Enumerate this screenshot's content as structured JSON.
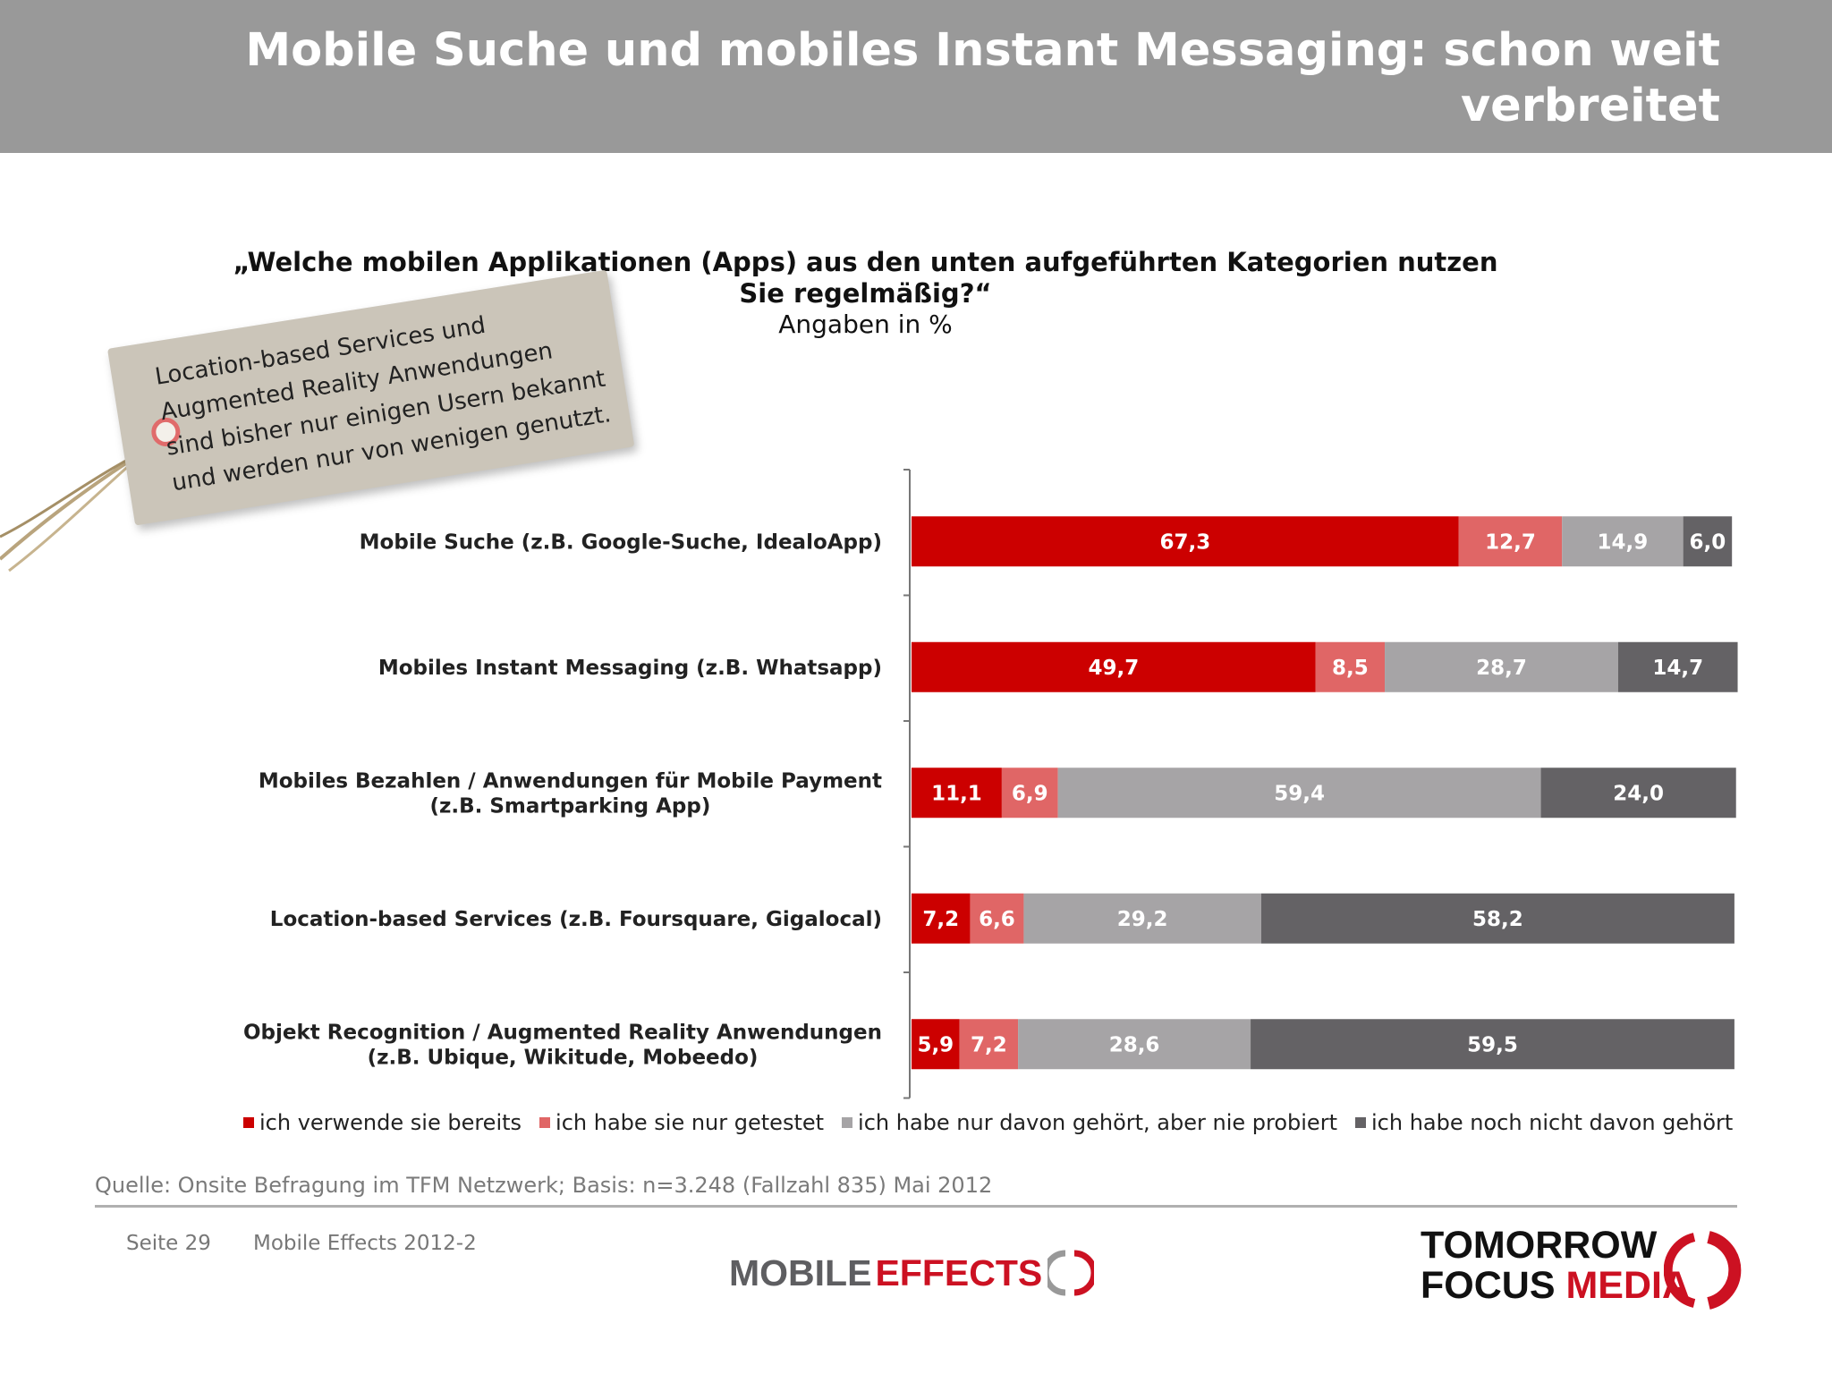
{
  "header": {
    "title_line1": "Mobile Suche und mobiles Instant Messaging: schon weit",
    "title_line2": "verbreitet"
  },
  "question": {
    "line1": "„Welche mobilen Applikationen (Apps) aus den unten aufgeführten Kategorien nutzen",
    "line2": "Sie regelmäßig?“",
    "unit": "Angaben in %"
  },
  "tag": {
    "lines": [
      "Location-based Services und",
      "Augmented Reality Anwendungen",
      "sind bisher nur einigen Usern bekannt",
      "und werden nur von wenigen genutzt."
    ]
  },
  "colors": {
    "header_bg": "#999999",
    "series": [
      "#cc0000",
      "#e06666",
      "#a6a4a6",
      "#646265"
    ]
  },
  "chart_data": {
    "type": "bar",
    "orientation": "horizontal",
    "stacked": true,
    "categories": [
      [
        "Mobile Suche (z.B. Google-Suche, IdealoApp)"
      ],
      [
        "Mobiles Instant Messaging (z.B. Whatsapp)"
      ],
      [
        "Mobiles Bezahlen / Anwendungen für Mobile Payment",
        "(z.B. Smartparking App)"
      ],
      [
        "Location-based Services (z.B. Foursquare, Gigalocal)"
      ],
      [
        "Objekt Recognition / Augmented Reality Anwendungen",
        "(z.B. Ubique, Wikitude, Mobeedo)"
      ]
    ],
    "series": [
      {
        "name": "ich verwende sie bereits",
        "values": [
          67.3,
          49.7,
          11.1,
          7.2,
          5.9
        ],
        "labels": [
          "67,3",
          "49,7",
          "11,1",
          "7,2",
          "5,9"
        ]
      },
      {
        "name": "ich habe sie nur getestet",
        "values": [
          12.7,
          8.5,
          6.9,
          6.6,
          7.2
        ],
        "labels": [
          "12,7",
          "8,5",
          "6,9",
          "6,6",
          "7,2"
        ]
      },
      {
        "name": "ich habe nur davon gehört, aber nie probiert",
        "values": [
          14.9,
          28.7,
          59.4,
          29.2,
          28.6
        ],
        "labels": [
          "14,9",
          "28,7",
          "59,4",
          "29,2",
          "28,6"
        ]
      },
      {
        "name": "ich habe noch nicht davon gehört",
        "values": [
          6.0,
          14.7,
          24.0,
          58.2,
          59.5
        ],
        "labels": [
          "6,0",
          "14,7",
          "24,0",
          "58,2",
          "59,5"
        ]
      }
    ],
    "xlim": [
      0,
      100
    ],
    "legend": "bottom",
    "grid": false
  },
  "source": "Quelle: Onsite Befragung im TFM Netzwerk; Basis: n=3.248 (Fallzahl 835) Mai 2012",
  "footer": {
    "page": "Seite 29",
    "doc": "Mobile Effects 2012-2"
  },
  "logos": {
    "mobile_effects": {
      "part1": "MOBILE",
      "part2": "EFFECTS"
    },
    "tfm": {
      "line1": "TOMORROW",
      "line2a": "FOCUS",
      "line2b": "MEDIA"
    }
  }
}
